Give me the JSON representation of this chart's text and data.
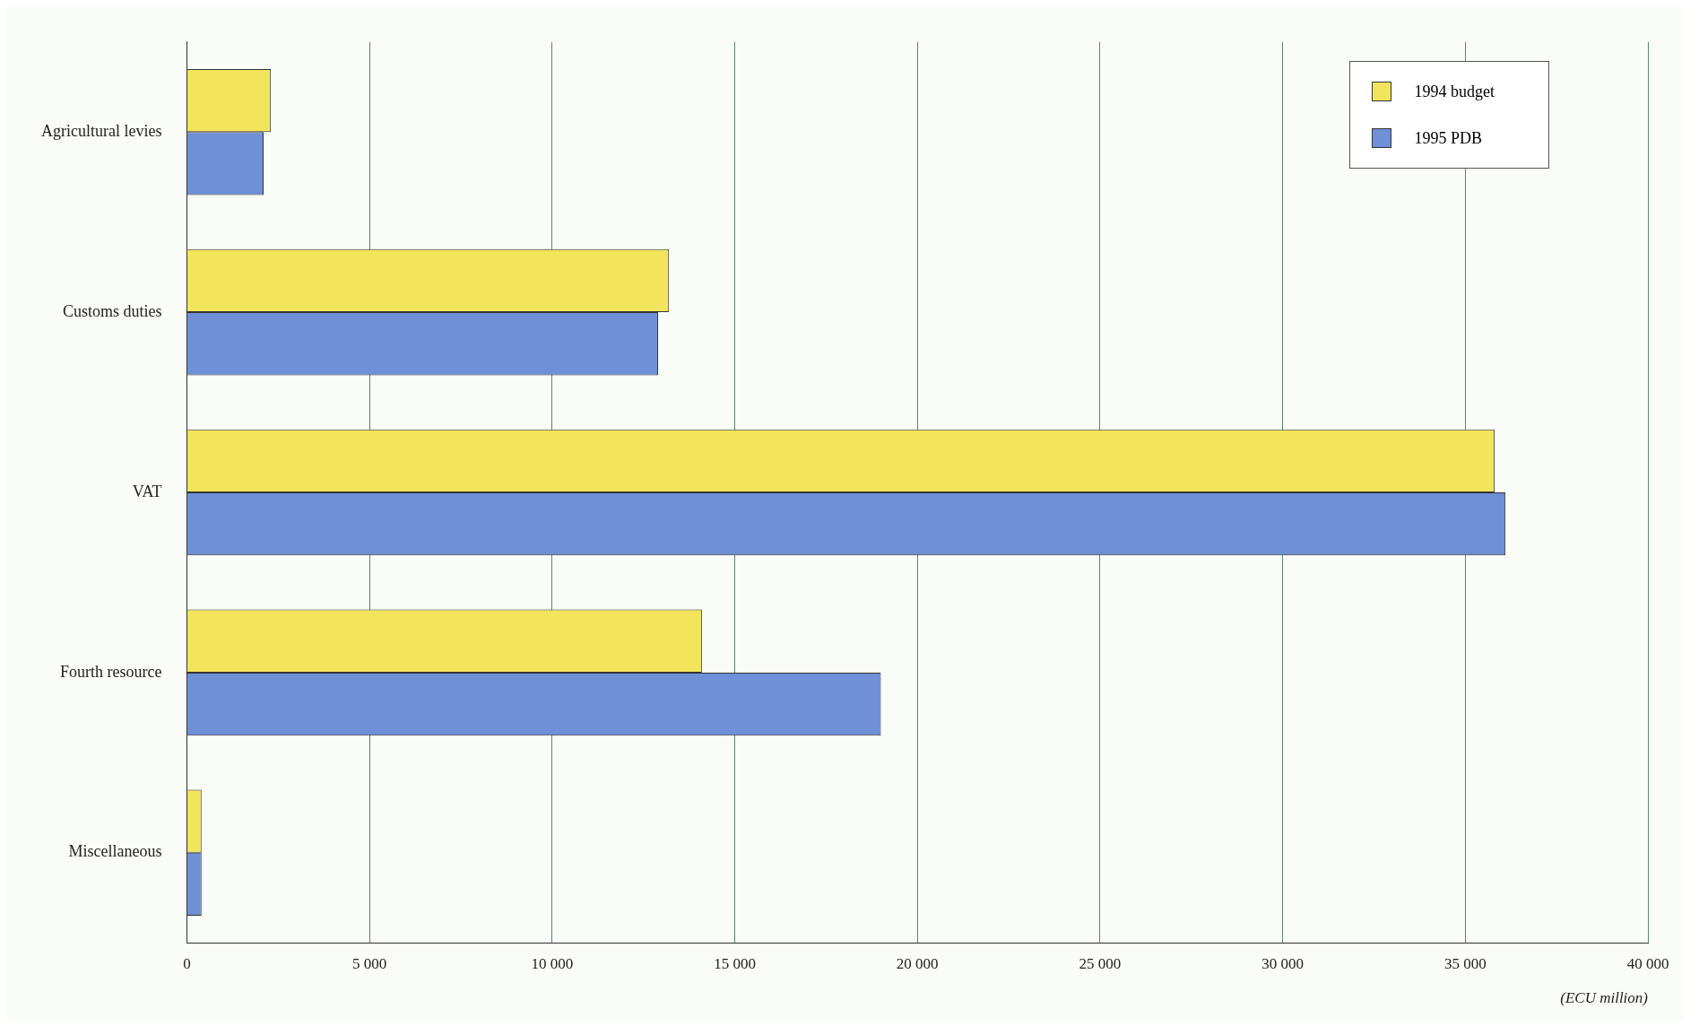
{
  "chart_data": {
    "type": "bar",
    "orientation": "horizontal",
    "xlabel": "(ECU million)",
    "categories": [
      "Agricultural levies",
      "Customs duties",
      "VAT",
      "Fourth resource",
      "Miscellaneous"
    ],
    "series": [
      {
        "name": "1994 budget",
        "color": "#f2e55c",
        "values": [
          2300,
          13200,
          35800,
          14100,
          400
        ]
      },
      {
        "name": "1995 PDB",
        "color": "#6f8fd6",
        "values": [
          2100,
          12900,
          36100,
          19000,
          400
        ]
      }
    ],
    "xlim": [
      0,
      40000
    ],
    "xticks": [
      {
        "value": 0,
        "label": "0"
      },
      {
        "value": 5000,
        "label": "5 000"
      },
      {
        "value": 10000,
        "label": "10 000"
      },
      {
        "value": 15000,
        "label": "15 000"
      },
      {
        "value": 20000,
        "label": "20 000"
      },
      {
        "value": 25000,
        "label": "25 000"
      },
      {
        "value": 30000,
        "label": "30 000"
      },
      {
        "value": 35000,
        "label": "35 000"
      },
      {
        "value": 40000,
        "label": "40 000"
      }
    ],
    "grid": "x",
    "legend": "top right"
  }
}
